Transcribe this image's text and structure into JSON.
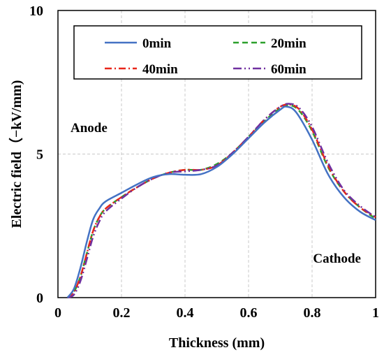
{
  "chart_data": {
    "type": "line",
    "title": "",
    "xlabel": "Thickness (mm)",
    "ylabel": "Electric field（−kV/mm)",
    "xlim": [
      0,
      1
    ],
    "ylim": [
      0,
      10
    ],
    "x_ticks": [
      "0",
      "0.2",
      "0.4",
      "0.6",
      "0.8",
      "1"
    ],
    "y_ticks": [
      "0",
      "5",
      "10"
    ],
    "grid": true,
    "legend_position": "top",
    "annotations": [
      {
        "text": "Anode",
        "at": [
          0.05,
          5.8
        ]
      },
      {
        "text": "Cathode",
        "at": [
          0.96,
          1.3
        ]
      }
    ],
    "series": [
      {
        "name": "0min",
        "color": "#4472c4",
        "dash": "solid",
        "points": [
          [
            0.03,
            0
          ],
          [
            0.05,
            0.3
          ],
          [
            0.07,
            1.0
          ],
          [
            0.09,
            1.9
          ],
          [
            0.11,
            2.7
          ],
          [
            0.13,
            3.1
          ],
          [
            0.15,
            3.35
          ],
          [
            0.2,
            3.65
          ],
          [
            0.25,
            3.95
          ],
          [
            0.3,
            4.2
          ],
          [
            0.35,
            4.3
          ],
          [
            0.4,
            4.28
          ],
          [
            0.45,
            4.3
          ],
          [
            0.5,
            4.55
          ],
          [
            0.55,
            5.0
          ],
          [
            0.6,
            5.55
          ],
          [
            0.65,
            6.1
          ],
          [
            0.7,
            6.55
          ],
          [
            0.72,
            6.65
          ],
          [
            0.75,
            6.45
          ],
          [
            0.8,
            5.5
          ],
          [
            0.85,
            4.3
          ],
          [
            0.9,
            3.5
          ],
          [
            0.95,
            3.0
          ],
          [
            1.0,
            2.7
          ]
        ]
      },
      {
        "name": "20min",
        "color": "#2ca02c",
        "dash": "dashed",
        "points": [
          [
            0.03,
            0
          ],
          [
            0.05,
            0.2
          ],
          [
            0.07,
            0.7
          ],
          [
            0.09,
            1.5
          ],
          [
            0.11,
            2.3
          ],
          [
            0.13,
            2.8
          ],
          [
            0.15,
            3.1
          ],
          [
            0.2,
            3.5
          ],
          [
            0.25,
            3.85
          ],
          [
            0.3,
            4.15
          ],
          [
            0.35,
            4.35
          ],
          [
            0.4,
            4.45
          ],
          [
            0.45,
            4.45
          ],
          [
            0.5,
            4.65
          ],
          [
            0.55,
            5.05
          ],
          [
            0.6,
            5.6
          ],
          [
            0.65,
            6.15
          ],
          [
            0.7,
            6.6
          ],
          [
            0.73,
            6.7
          ],
          [
            0.76,
            6.5
          ],
          [
            0.8,
            5.8
          ],
          [
            0.85,
            4.55
          ],
          [
            0.9,
            3.7
          ],
          [
            0.95,
            3.15
          ],
          [
            1.0,
            2.75
          ]
        ]
      },
      {
        "name": "40min",
        "color": "#e8261a",
        "dash": "dashdot",
        "points": [
          [
            0.03,
            0
          ],
          [
            0.05,
            0.2
          ],
          [
            0.07,
            0.7
          ],
          [
            0.09,
            1.5
          ],
          [
            0.11,
            2.3
          ],
          [
            0.13,
            2.8
          ],
          [
            0.15,
            3.1
          ],
          [
            0.2,
            3.5
          ],
          [
            0.25,
            3.85
          ],
          [
            0.3,
            4.15
          ],
          [
            0.35,
            4.35
          ],
          [
            0.4,
            4.45
          ],
          [
            0.45,
            4.45
          ],
          [
            0.5,
            4.6
          ],
          [
            0.55,
            5.05
          ],
          [
            0.6,
            5.6
          ],
          [
            0.65,
            6.2
          ],
          [
            0.7,
            6.65
          ],
          [
            0.73,
            6.72
          ],
          [
            0.76,
            6.55
          ],
          [
            0.8,
            5.85
          ],
          [
            0.85,
            4.6
          ],
          [
            0.9,
            3.7
          ],
          [
            0.95,
            3.15
          ],
          [
            1.0,
            2.8
          ]
        ]
      },
      {
        "name": "60min",
        "color": "#7030a0",
        "dash": "dashdotdot",
        "points": [
          [
            0.03,
            0
          ],
          [
            0.05,
            0.1
          ],
          [
            0.07,
            0.55
          ],
          [
            0.09,
            1.3
          ],
          [
            0.11,
            2.1
          ],
          [
            0.13,
            2.65
          ],
          [
            0.15,
            3.0
          ],
          [
            0.2,
            3.45
          ],
          [
            0.25,
            3.85
          ],
          [
            0.3,
            4.15
          ],
          [
            0.35,
            4.35
          ],
          [
            0.4,
            4.4
          ],
          [
            0.45,
            4.45
          ],
          [
            0.5,
            4.6
          ],
          [
            0.55,
            5.05
          ],
          [
            0.6,
            5.6
          ],
          [
            0.65,
            6.2
          ],
          [
            0.7,
            6.65
          ],
          [
            0.73,
            6.75
          ],
          [
            0.76,
            6.6
          ],
          [
            0.8,
            5.95
          ],
          [
            0.85,
            4.7
          ],
          [
            0.9,
            3.75
          ],
          [
            0.95,
            3.2
          ],
          [
            1.0,
            2.8
          ]
        ]
      }
    ]
  }
}
